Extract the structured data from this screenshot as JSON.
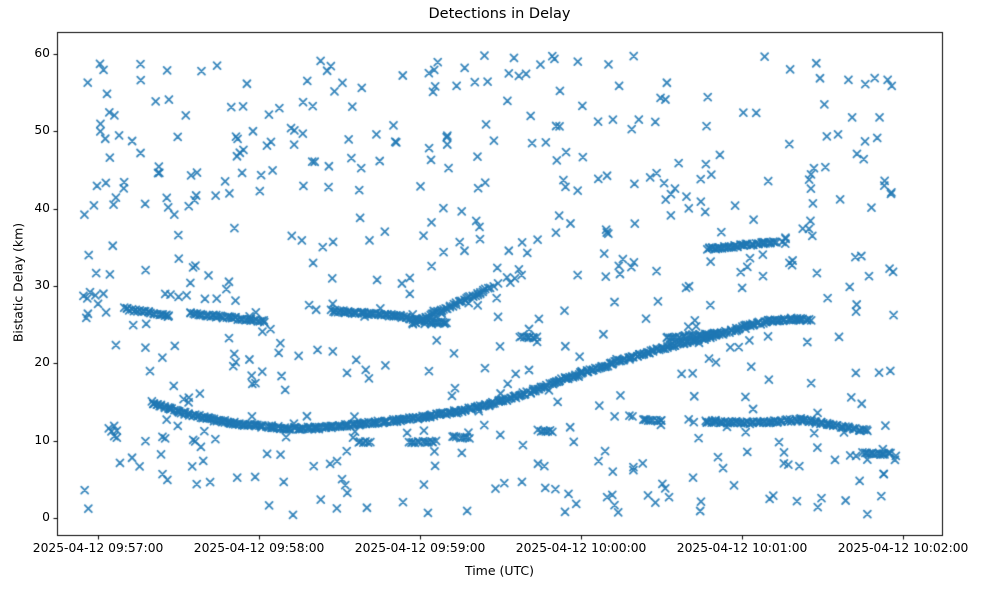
{
  "chart_data": {
    "type": "scatter",
    "title": "Detections in Delay",
    "xlabel": "Time (UTC)",
    "ylabel": "Bistatic Delay (km)",
    "grid": false,
    "legend": null,
    "marker": {
      "shape": "x",
      "color": "#1f77b4",
      "half_size_px": 3.5,
      "line_width": 1.8,
      "alpha": 0.88
    },
    "x_axis": {
      "tick_labels": [
        "2025-04-12 09:57:00",
        "2025-04-12 09:58:00",
        "2025-04-12 09:59:00",
        "2025-04-12 10:00:00",
        "2025-04-12 10:01:00",
        "2025-04-12 10:02:00"
      ],
      "tick_seconds": [
        0,
        60,
        120,
        180,
        240,
        300
      ],
      "range_seconds": [
        -15.3,
        314.5
      ],
      "reference_time": "2025-04-12 09:57:00"
    },
    "y_axis": {
      "ticks": [
        0,
        10,
        20,
        30,
        40,
        50,
        60
      ],
      "range": [
        -2.2,
        62.85
      ]
    },
    "tracks": [
      {
        "name": "track-26km-a",
        "t": [
          10,
          27
        ],
        "d": [
          27.1,
          26.1
        ],
        "step": 0.7,
        "jitter_t": 0.5,
        "jitter_d": 0.15
      },
      {
        "name": "track-26km-b",
        "t": [
          34,
          62
        ],
        "d": [
          26.5,
          25.4
        ],
        "step": 0.65,
        "jitter_t": 0.5,
        "jitter_d": 0.15
      },
      {
        "name": "track-26km-c",
        "t": [
          87,
          110,
          130
        ],
        "d": [
          26.8,
          26.2,
          25.1
        ],
        "step": 0.55,
        "jitter_t": 0.6,
        "jitter_d": 0.16
      },
      {
        "name": "track-rising-branch",
        "t": [
          117,
          146
        ],
        "d": [
          25.1,
          29.7
        ],
        "step": 0.6,
        "jitter_t": 0.5,
        "jitter_d": 0.16
      },
      {
        "name": "track-rising-tail",
        "t": [
          147,
          159
        ],
        "d": [
          30.0,
          31.9
        ],
        "step": 2.6,
        "jitter_t": 0.7,
        "jitter_d": 0.3
      },
      {
        "name": "track-main-pass",
        "t": [
          20,
          30,
          40,
          50,
          60,
          70,
          80,
          90,
          100,
          110,
          120,
          130,
          140,
          150,
          160,
          170,
          180,
          190,
          200,
          215,
          225,
          235,
          245,
          252,
          258,
          265
        ],
        "d": [
          15.0,
          13.8,
          12.9,
          12.3,
          11.9,
          11.65,
          11.6,
          11.85,
          12.2,
          12.6,
          13.0,
          13.5,
          14.2,
          15.1,
          16.2,
          17.5,
          18.7,
          19.8,
          20.9,
          22.4,
          23.2,
          24.1,
          25.1,
          25.6,
          25.7,
          25.7
        ],
        "step": 0.5,
        "jitter_t": 0.8,
        "jitter_d": 0.17
      },
      {
        "name": "track-35km",
        "t": [
          227,
          252
        ],
        "d": [
          34.8,
          35.7
        ],
        "step": 0.55,
        "jitter_t": 0.5,
        "jitter_d": 0.15
      },
      {
        "name": "track-35km-tail",
        "t": [
          253,
          258
        ],
        "d": [
          35.7,
          35.6
        ],
        "step": 1.7,
        "jitter_t": 0.5,
        "jitter_d": 0.2
      },
      {
        "name": "dash-12km-left",
        "t": [
          203,
          211
        ],
        "d": [
          12.65,
          12.6
        ],
        "step": 0.8,
        "jitter_t": 0.4,
        "jitter_d": 0.12
      },
      {
        "name": "track-12km-right",
        "t": [
          226,
          240,
          252,
          262,
          270,
          278,
          287
        ],
        "d": [
          12.5,
          12.3,
          12.45,
          12.7,
          12.25,
          11.75,
          11.25
        ],
        "step": 0.6,
        "jitter_t": 0.7,
        "jitter_d": 0.15
      },
      {
        "name": "dash-8km",
        "t": [
          285,
          296
        ],
        "d": [
          8.35,
          8.3
        ],
        "step": 0.7,
        "jitter_t": 0.4,
        "jitter_d": 0.13
      },
      {
        "name": "dash-23km-a",
        "t": [
          157,
          164
        ],
        "d": [
          23.45,
          23.35
        ],
        "step": 0.8,
        "jitter_t": 0.4,
        "jitter_d": 0.12
      },
      {
        "name": "dash-23km-b",
        "t": [
          212,
          231
        ],
        "d": [
          23.3,
          23.9
        ],
        "step": 0.7,
        "jitter_t": 0.5,
        "jitter_d": 0.15
      },
      {
        "name": "dash-10km-a",
        "t": [
          97,
          102
        ],
        "d": [
          9.85,
          9.8
        ],
        "step": 0.9,
        "jitter_t": 0.4,
        "jitter_d": 0.12
      },
      {
        "name": "dash-10km-b",
        "t": [
          116,
          126
        ],
        "d": [
          9.8,
          9.9
        ],
        "step": 0.8,
        "jitter_t": 0.4,
        "jitter_d": 0.12
      },
      {
        "name": "dash-10km-c",
        "t": [
          132,
          139
        ],
        "d": [
          10.5,
          10.4
        ],
        "step": 0.9,
        "jitter_t": 0.4,
        "jitter_d": 0.12
      },
      {
        "name": "dash-11km",
        "t": [
          164,
          170
        ],
        "d": [
          11.3,
          11.2
        ],
        "step": 0.9,
        "jitter_t": 0.4,
        "jitter_d": 0.12
      }
    ],
    "cluster_points": [
      [
        -4,
        28.4
      ],
      [
        -3,
        29.2
      ],
      [
        -1,
        28.8
      ],
      [
        0,
        27.7
      ],
      [
        2,
        29.0
      ],
      [
        3,
        26.6
      ],
      [
        4,
        11.6
      ],
      [
        5,
        11.2
      ],
      [
        6,
        11.9
      ],
      [
        7,
        11.3
      ],
      [
        6,
        10.6
      ],
      [
        7,
        10.4
      ],
      [
        24,
        10.5
      ],
      [
        25,
        10.3
      ],
      [
        27,
        28.9
      ],
      [
        30,
        28.6
      ],
      [
        33,
        28.8
      ],
      [
        63,
        8.3
      ],
      [
        68,
        8.2
      ],
      [
        150,
        16.1
      ],
      [
        222,
        12.4
      ]
    ],
    "clutter": {
      "description": "uniform random detections",
      "count": 540,
      "seed": 99,
      "t_range": [
        -6,
        298
      ],
      "d_range": [
        0.4,
        59.9
      ]
    }
  }
}
